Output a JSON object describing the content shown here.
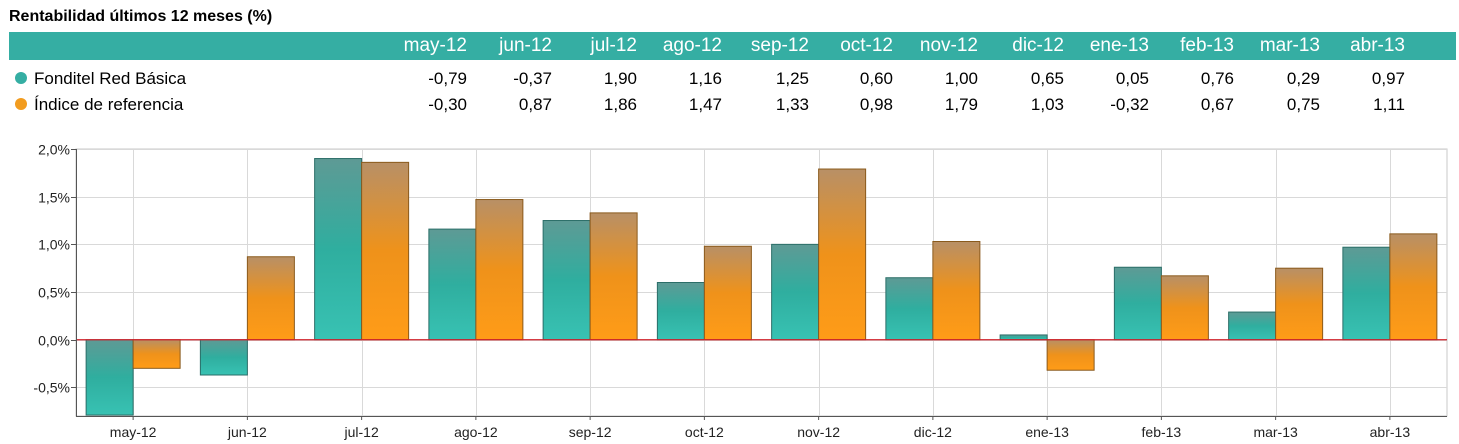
{
  "title": "Rentabilidad últimos 12 meses (%)",
  "colors": {
    "header": "#35aea3",
    "series1": "#35aea3",
    "series2": "#f29c1f",
    "zero_line": "#d0202a"
  },
  "table": {
    "months": [
      "may-12",
      "jun-12",
      "jul-12",
      "ago-12",
      "sep-12",
      "oct-12",
      "nov-12",
      "dic-12",
      "ene-13",
      "feb-13",
      "mar-13",
      "abr-13"
    ],
    "rows": [
      {
        "label": "Fonditel Red Básica",
        "values": [
          "-0,79",
          "-0,37",
          "1,90",
          "1,16",
          "1,25",
          "0,60",
          "1,00",
          "0,65",
          "0,05",
          "0,76",
          "0,29",
          "0,97"
        ]
      },
      {
        "label": "Índice de referencia",
        "values": [
          "-0,30",
          "0,87",
          "1,86",
          "1,47",
          "1,33",
          "0,98",
          "1,79",
          "1,03",
          "-0,32",
          "0,67",
          "0,75",
          "1,11"
        ]
      }
    ]
  },
  "chart_data": {
    "type": "bar",
    "categories": [
      "may-12",
      "jun-12",
      "jul-12",
      "ago-12",
      "sep-12",
      "oct-12",
      "nov-12",
      "dic-12",
      "ene-13",
      "feb-13",
      "mar-13",
      "abr-13"
    ],
    "series": [
      {
        "name": "Fonditel Red Básica",
        "values": [
          -0.79,
          -0.37,
          1.9,
          1.16,
          1.25,
          0.6,
          1.0,
          0.65,
          0.05,
          0.76,
          0.29,
          0.97
        ]
      },
      {
        "name": "Índice de referencia",
        "values": [
          -0.3,
          0.87,
          1.86,
          1.47,
          1.33,
          0.98,
          1.79,
          1.03,
          -0.32,
          0.67,
          0.75,
          1.11
        ]
      }
    ],
    "ylim": [
      -0.8,
      2.0
    ],
    "yticks": [
      2.0,
      1.5,
      1.0,
      0.5,
      0.0,
      -0.5
    ],
    "ytick_labels": [
      "2,0%",
      "1,5%",
      "1,0%",
      "0,5%",
      "0,0%",
      "-0,5%"
    ],
    "grid": true,
    "legend": "table-above"
  }
}
